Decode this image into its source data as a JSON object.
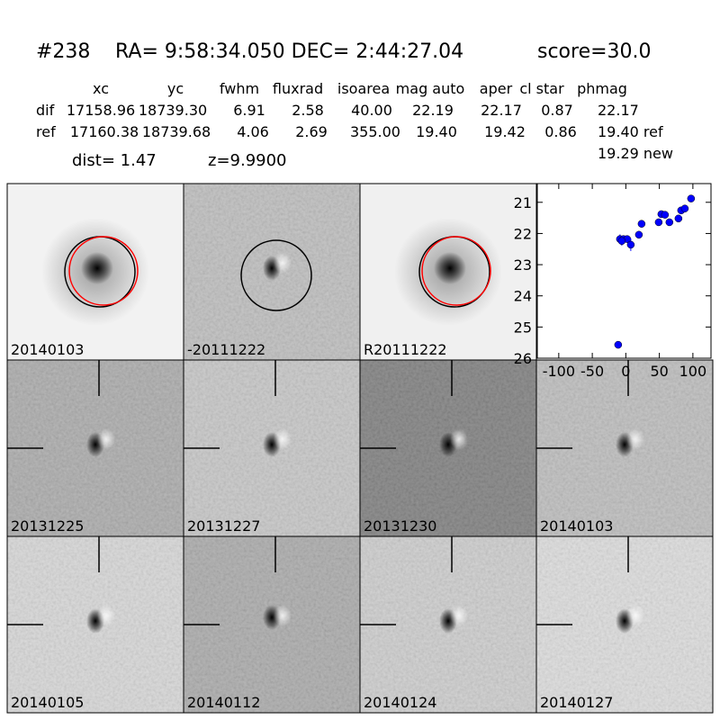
{
  "header": {
    "id": "#238",
    "coords": "RA= 9:58:34.050 DEC= 2:44:27.04",
    "score": "score=30.0"
  },
  "table": {
    "columns": [
      "xc",
      "yc",
      "fwhm",
      "fluxrad",
      "isoarea",
      "mag auto",
      "aper",
      "cl star",
      "phmag"
    ],
    "rows": [
      [
        "dif",
        "17158.96",
        "18739.30",
        "6.91",
        "2.58",
        "40.00",
        "22.19",
        "22.17",
        "0.87",
        "22.17"
      ],
      [
        "ref",
        "17160.38",
        "18739.68",
        "4.06",
        "2.69",
        "355.00",
        "19.40",
        "19.42",
        "0.86",
        "19.40 ref"
      ]
    ],
    "extra": "19.29 new"
  },
  "dist": "dist=  1.47",
  "z": "z=9.9900",
  "stamps": [
    {
      "label": "20140103"
    },
    {
      "label": "-20111222"
    },
    {
      "label": "R20111222"
    },
    {
      "label": "20131225"
    },
    {
      "label": "20131227"
    },
    {
      "label": "20131230"
    },
    {
      "label": "20140103",
      "color": "#ff0000"
    },
    {
      "label": "20140105"
    },
    {
      "label": "20140112"
    },
    {
      "label": "20140124"
    },
    {
      "label": "20140127"
    }
  ],
  "chart_data": {
    "type": "scatter",
    "color": "#0000ff",
    "x": [
      -11.4,
      -8.7,
      -3.4,
      2,
      -6,
      7.4,
      19.5,
      23.5,
      49,
      53,
      58.4,
      65,
      78.5,
      82.5,
      88,
      97.3
    ],
    "values": [
      25.57,
      22.18,
      22.18,
      22.18,
      22.24,
      22.36,
      22.04,
      21.69,
      21.64,
      21.38,
      21.4,
      21.64,
      21.52,
      21.26,
      21.2,
      20.88
    ],
    "errors": [
      0.08,
      0.15,
      0.12,
      0.1,
      0.15,
      0.2,
      0.12,
      0.12,
      0.1,
      0.08,
      0.08,
      0.1,
      0.1,
      0.08,
      0.08,
      0.06
    ],
    "xlim": [
      -132,
      127
    ],
    "ylim": [
      26,
      20.4
    ],
    "xticks": [
      -100,
      -50,
      0,
      50,
      100
    ],
    "yticks": [
      21,
      22,
      23,
      24,
      25,
      26
    ]
  }
}
